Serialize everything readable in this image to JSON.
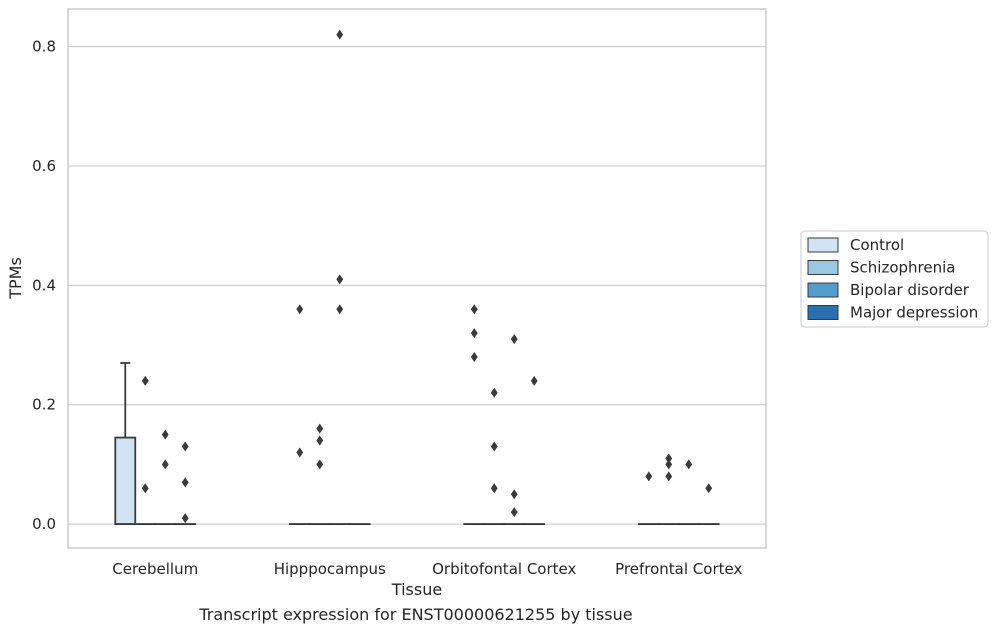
{
  "caption": "Transcript expression for ENST00000621255 by tissue",
  "chart_data": {
    "type": "box",
    "xlabel": "Tissue",
    "ylabel": "TPMs",
    "ylim": [
      -0.04,
      0.863
    ],
    "yticks": [
      0.0,
      0.2,
      0.4,
      0.6,
      0.8
    ],
    "ytick_labels": [
      "0.0",
      "0.2",
      "0.4",
      "0.6",
      "0.8"
    ],
    "grid": "horizontal",
    "legend_placement": "right",
    "categories": [
      "Cerebellum",
      "Hipppocampus",
      "Orbitofontal Cortex",
      "Prefrontal Cortex"
    ],
    "series": [
      {
        "name": "Control",
        "color": "#d2e3f3"
      },
      {
        "name": "Schizophrenia",
        "color": "#9ac8e0"
      },
      {
        "name": "Bipolar disorder",
        "color": "#529dcc"
      },
      {
        "name": "Major depression",
        "color": "#2a6fae"
      }
    ],
    "boxes": [
      {
        "category": 0,
        "series": 0,
        "q1": 0.0,
        "median": 0.0,
        "q3": 0.145,
        "whisker_low": 0.0,
        "whisker_high": 0.27,
        "outliers": []
      },
      {
        "category": 0,
        "series": 1,
        "q1": 0.0,
        "median": 0.0,
        "q3": 0.0,
        "whisker_low": 0.0,
        "whisker_high": 0.0,
        "outliers": [
          0.24,
          0.06
        ]
      },
      {
        "category": 0,
        "series": 2,
        "q1": 0.0,
        "median": 0.0,
        "q3": 0.0,
        "whisker_low": 0.0,
        "whisker_high": 0.0,
        "outliers": [
          0.15,
          0.1
        ]
      },
      {
        "category": 0,
        "series": 3,
        "q1": 0.0,
        "median": 0.0,
        "q3": 0.0,
        "whisker_low": 0.0,
        "whisker_high": 0.0,
        "outliers": [
          0.13,
          0.07,
          0.01
        ]
      },
      {
        "category": 1,
        "series": 0,
        "q1": 0.0,
        "median": 0.0,
        "q3": 0.0,
        "whisker_low": 0.0,
        "whisker_high": 0.0,
        "outliers": [
          0.36,
          0.12
        ]
      },
      {
        "category": 1,
        "series": 1,
        "q1": 0.0,
        "median": 0.0,
        "q3": 0.0,
        "whisker_low": 0.0,
        "whisker_high": 0.0,
        "outliers": [
          0.16,
          0.14,
          0.1
        ]
      },
      {
        "category": 1,
        "series": 2,
        "q1": 0.0,
        "median": 0.0,
        "q3": 0.0,
        "whisker_low": 0.0,
        "whisker_high": 0.0,
        "outliers": [
          0.82,
          0.41,
          0.36
        ]
      },
      {
        "category": 1,
        "series": 3,
        "q1": 0.0,
        "median": 0.0,
        "q3": 0.0,
        "whisker_low": 0.0,
        "whisker_high": 0.0,
        "outliers": []
      },
      {
        "category": 2,
        "series": 0,
        "q1": 0.0,
        "median": 0.0,
        "q3": 0.0,
        "whisker_low": 0.0,
        "whisker_high": 0.0,
        "outliers": [
          0.36,
          0.32,
          0.28
        ]
      },
      {
        "category": 2,
        "series": 1,
        "q1": 0.0,
        "median": 0.0,
        "q3": 0.0,
        "whisker_low": 0.0,
        "whisker_high": 0.0,
        "outliers": [
          0.22,
          0.13,
          0.06
        ]
      },
      {
        "category": 2,
        "series": 2,
        "q1": 0.0,
        "median": 0.0,
        "q3": 0.0,
        "whisker_low": 0.0,
        "whisker_high": 0.0,
        "outliers": [
          0.31,
          0.05,
          0.02
        ]
      },
      {
        "category": 2,
        "series": 3,
        "q1": 0.0,
        "median": 0.0,
        "q3": 0.0,
        "whisker_low": 0.0,
        "whisker_high": 0.0,
        "outliers": [
          0.24
        ]
      },
      {
        "category": 3,
        "series": 0,
        "q1": 0.0,
        "median": 0.0,
        "q3": 0.0,
        "whisker_low": 0.0,
        "whisker_high": 0.0,
        "outliers": [
          0.08
        ]
      },
      {
        "category": 3,
        "series": 1,
        "q1": 0.0,
        "median": 0.0,
        "q3": 0.0,
        "whisker_low": 0.0,
        "whisker_high": 0.0,
        "outliers": [
          0.11,
          0.1,
          0.08
        ]
      },
      {
        "category": 3,
        "series": 2,
        "q1": 0.0,
        "median": 0.0,
        "q3": 0.0,
        "whisker_low": 0.0,
        "whisker_high": 0.0,
        "outliers": [
          0.1
        ]
      },
      {
        "category": 3,
        "series": 3,
        "q1": 0.0,
        "median": 0.0,
        "q3": 0.0,
        "whisker_low": 0.0,
        "whisker_high": 0.0,
        "outliers": [
          0.06
        ]
      }
    ]
  }
}
